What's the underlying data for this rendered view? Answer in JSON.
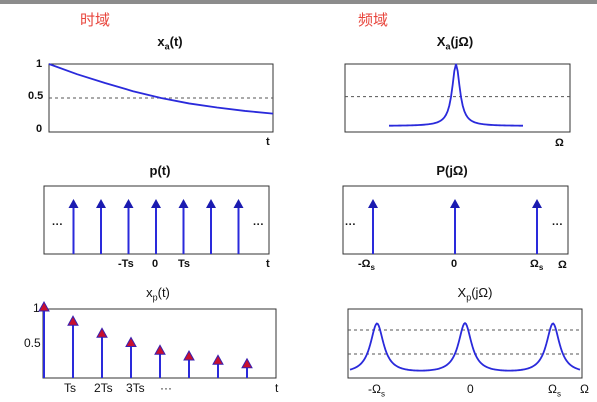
{
  "headers": {
    "time": "时域",
    "freq": "频域"
  },
  "titles": {
    "xa_t": {
      "main": "x",
      "sub": "a",
      "tail": "(t)"
    },
    "Xa_f": {
      "main": "X",
      "sub": "a",
      "tail": "(jΩ)"
    },
    "p_t": "p(t)",
    "P_f": "P(jΩ)",
    "xp_t": {
      "main": "x",
      "sub": "p",
      "tail": "(t)"
    },
    "Xp_f": {
      "main": "X",
      "sub": "p",
      "tail": "(jΩ)"
    }
  },
  "axes": {
    "xa_t": {
      "yticks": [
        "1",
        "0.5",
        "0"
      ],
      "xlabel": "t"
    },
    "Xa_f": {
      "xlabel": "Ω"
    },
    "p_t": {
      "ticks": [
        "-Ts",
        "0",
        "Ts"
      ],
      "xlabel": "t",
      "dots_left": "···",
      "dots_right": "···"
    },
    "P_f": {
      "ticks": [
        "-Ω",
        "0",
        "Ω"
      ],
      "tick_subs": [
        "s",
        "",
        "s"
      ],
      "xlabel": "Ω",
      "dots_left": "···",
      "dots_right": "···"
    },
    "xp_t": {
      "yticks": [
        "1",
        "0.5"
      ],
      "xticks": [
        "Ts",
        "2Ts",
        "3Ts",
        "···"
      ],
      "xlabel": "t"
    },
    "Xp_f": {
      "ticks": [
        "-Ω",
        "0",
        "Ω"
      ],
      "tick_subs": [
        "s",
        "",
        "s"
      ],
      "xlabel": "Ω"
    }
  },
  "colors": {
    "curve": "#2a2adb",
    "marker": "#c8102e",
    "header": "#e8453c"
  },
  "chart_data": [
    {
      "type": "line",
      "title": "xa(t)",
      "description_fn": "exp(-t)",
      "x": [
        0,
        0.5,
        1,
        1.5,
        2,
        2.5,
        3,
        3.5,
        4
      ],
      "y": [
        1.0,
        0.85,
        0.72,
        0.6,
        0.5,
        0.42,
        0.36,
        0.31,
        0.27
      ],
      "xlabel": "t",
      "ylim": [
        0,
        1
      ]
    },
    {
      "type": "line",
      "title": "Xa(jΩ)",
      "shape": "lorentzian-peak",
      "xlabel": "Ω"
    },
    {
      "type": "stem",
      "title": "p(t)",
      "x": [
        -3,
        -2,
        -1,
        0,
        1,
        2,
        3
      ],
      "y": [
        1,
        1,
        1,
        1,
        1,
        1,
        1
      ],
      "xlabel": "t"
    },
    {
      "type": "stem",
      "title": "P(jΩ)",
      "x": [
        -1,
        0,
        1
      ],
      "y": [
        1,
        1,
        1
      ],
      "xlabel": "Ω"
    },
    {
      "type": "stem",
      "title": "xp(t)",
      "x": [
        0,
        1,
        2,
        3,
        4,
        5,
        6,
        7
      ],
      "y": [
        1.0,
        0.8,
        0.63,
        0.5,
        0.39,
        0.31,
        0.25,
        0.2
      ],
      "xlabel": "t",
      "ylim": [
        0,
        1
      ]
    },
    {
      "type": "line",
      "title": "Xp(jΩ)",
      "shape": "periodic-peaks",
      "peaks_at": [
        -1,
        0,
        1
      ],
      "xlabel": "Ω"
    }
  ]
}
